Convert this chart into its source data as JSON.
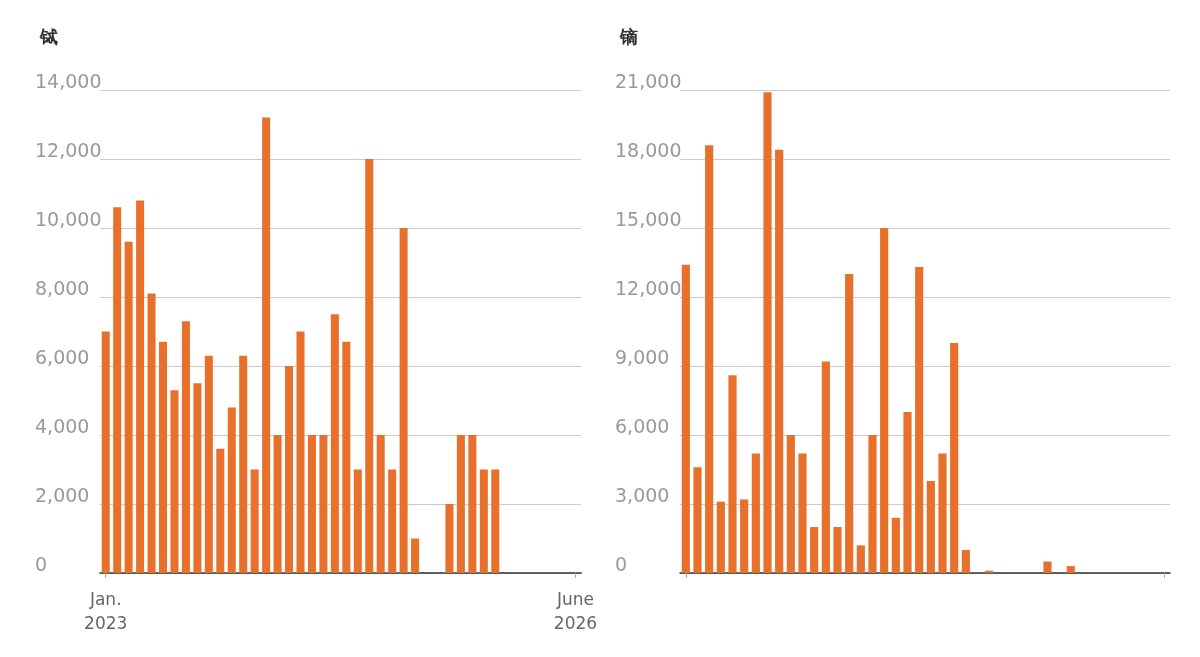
{
  "chart_data": [
    {
      "type": "bar",
      "title": "铽",
      "categories": [
        "Jan. 2023",
        null,
        null,
        null,
        null,
        null,
        null,
        null,
        null,
        null,
        null,
        null,
        null,
        null,
        null,
        null,
        null,
        null,
        null,
        null,
        null,
        null,
        null,
        null,
        null,
        null,
        null,
        null,
        null,
        null,
        null,
        null,
        null,
        null,
        null,
        null,
        null,
        null,
        null,
        null,
        null,
        "June 2026"
      ],
      "values": [
        7000,
        10600,
        9600,
        10800,
        8100,
        6700,
        5300,
        7300,
        5500,
        6300,
        3600,
        4800,
        6300,
        3000,
        13200,
        4000,
        6000,
        7000,
        4000,
        4000,
        7500,
        6700,
        3000,
        12000,
        4000,
        3000,
        10000,
        1000,
        null,
        null,
        2000,
        4000,
        4000,
        3000,
        3000,
        null,
        null,
        null,
        null,
        null,
        null,
        null
      ],
      "color": "#e8702a",
      "ylim": [
        0,
        14000
      ],
      "yticks": [
        0,
        {
          "value": 2000,
          "label": "2,000"
        },
        {
          "value": 4000,
          "label": "4,000"
        },
        {
          "value": 6000,
          "label": "6,000"
        },
        {
          "value": 8000,
          "label": "8,000"
        },
        {
          "value": 10000,
          "label": "10,000"
        },
        {
          "value": 12000,
          "label": "12,000"
        },
        {
          "value": 14000,
          "label": "14,000"
        }
      ],
      "grid": "y"
    },
    {
      "type": "bar",
      "title": "镝",
      "categories": [
        null,
        null,
        null,
        null,
        null,
        null,
        null,
        null,
        null,
        null,
        null,
        null,
        null,
        null,
        null,
        null,
        null,
        null,
        null,
        null,
        null,
        null,
        null,
        null,
        null,
        null,
        null,
        null,
        null,
        null,
        null,
        null,
        null,
        null,
        null,
        null,
        null,
        null,
        null,
        null,
        null,
        null
      ],
      "values": [
        13400,
        4600,
        18600,
        3100,
        8600,
        3200,
        5200,
        20900,
        18400,
        6000,
        5200,
        2000,
        9200,
        2000,
        13000,
        1200,
        6000,
        15000,
        2400,
        7000,
        13300,
        4000,
        5200,
        10000,
        1000,
        null,
        100,
        null,
        null,
        null,
        null,
        500,
        null,
        300,
        null,
        null,
        null,
        null,
        null,
        null,
        null,
        null
      ],
      "color": "#e8702a",
      "ylim": [
        0,
        21000
      ],
      "yticks": [
        0,
        {
          "value": 3000,
          "label": "3,000"
        },
        {
          "value": 6000,
          "label": "6,000"
        },
        {
          "value": 9000,
          "label": "9,000"
        },
        {
          "value": 12000,
          "label": "12,000"
        },
        {
          "value": 15000,
          "label": "15,000"
        },
        {
          "value": 18000,
          "label": "18,000"
        },
        {
          "value": 21000,
          "label": "21,000"
        }
      ],
      "grid": "y",
      "tick_labels": "y"
    }
  ]
}
